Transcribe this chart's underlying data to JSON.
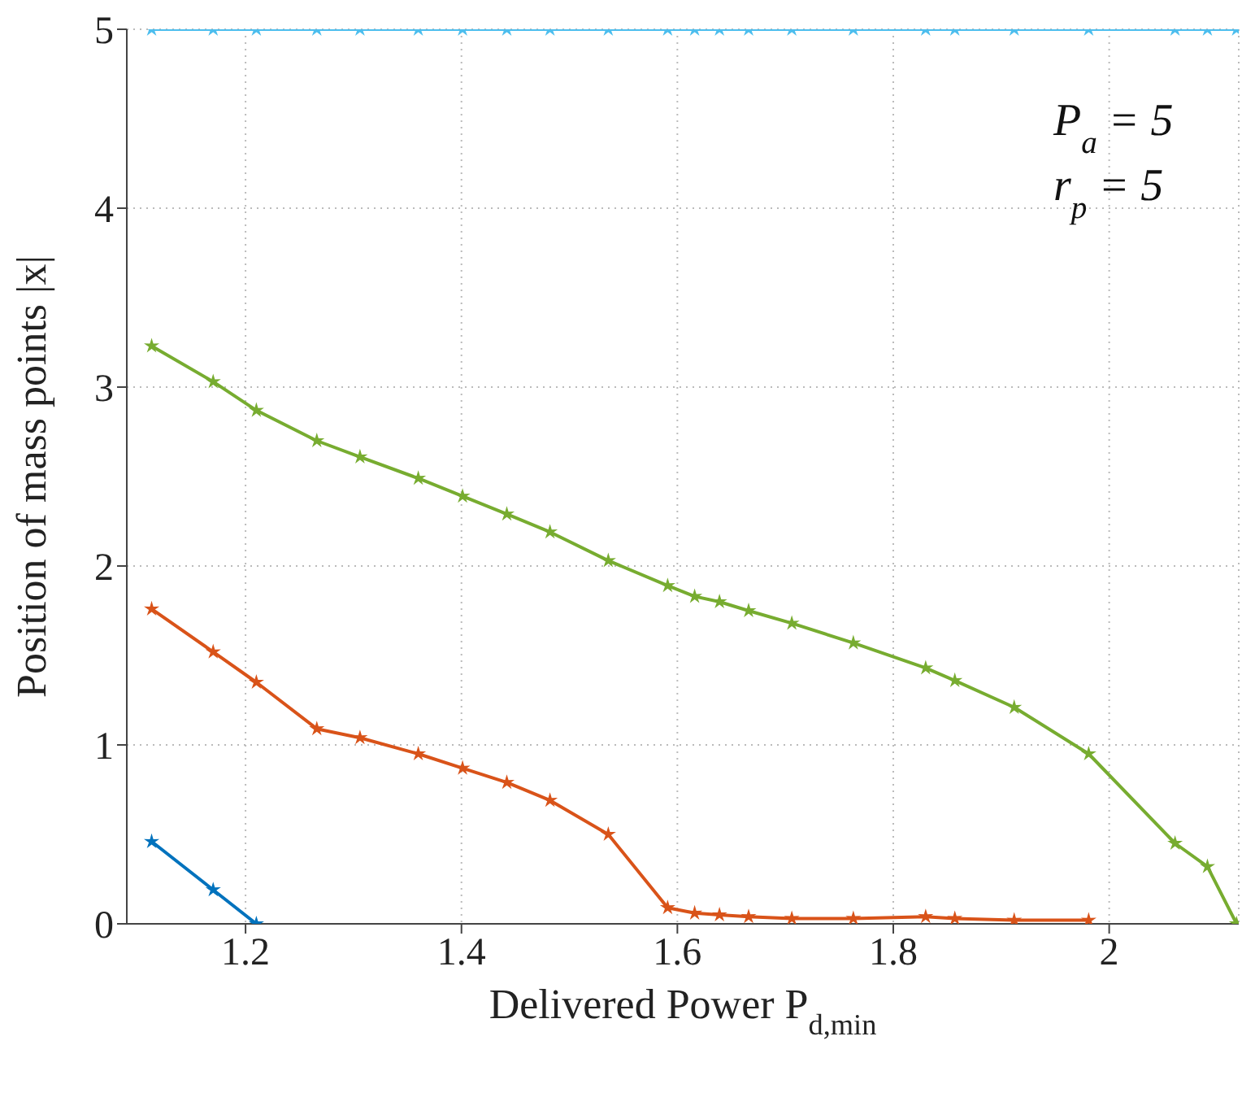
{
  "chart_data": {
    "type": "line",
    "xlabel": "Delivered Power P$_{d,min}$",
    "ylabel": "Position of mass points |x|",
    "x": [
      1.113,
      1.17,
      1.21,
      1.266,
      1.306,
      1.36,
      1.401,
      1.442,
      1.482,
      1.536,
      1.591,
      1.616,
      1.639,
      1.666,
      1.706,
      1.763,
      1.83,
      1.857,
      1.912,
      1.981,
      2.061,
      2.091,
      2.118
    ],
    "series": [
      {
        "color": "#0072bd",
        "x": [
          1.113,
          1.17,
          1.21
        ],
        "values": [
          0.46,
          0.19,
          0
        ]
      },
      {
        "color": "#d95319",
        "x": [
          1.113,
          1.17,
          1.21,
          1.266,
          1.306,
          1.36,
          1.401,
          1.442,
          1.482,
          1.536,
          1.591,
          1.616,
          1.639,
          1.666,
          1.706,
          1.763,
          1.83,
          1.857,
          1.912,
          1.981
        ],
        "values": [
          1.76,
          1.52,
          1.35,
          1.09,
          1.04,
          0.95,
          0.87,
          0.79,
          0.69,
          0.5,
          0.09,
          0.06,
          0.05,
          0.04,
          0.03,
          0.03,
          0.04,
          0.03,
          0.02,
          0.02
        ]
      },
      {
        "color": "#77ac30",
        "values": [
          3.23,
          3.03,
          2.87,
          2.7,
          2.61,
          2.49,
          2.39,
          2.29,
          2.19,
          2.03,
          1.89,
          1.83,
          1.8,
          1.75,
          1.68,
          1.57,
          1.43,
          1.36,
          1.21,
          0.95,
          0.45,
          0.32,
          0
        ]
      },
      {
        "color": "#4dbeee",
        "values": [
          5,
          5,
          5,
          5,
          5,
          5,
          5,
          5,
          5,
          5,
          5,
          5,
          5,
          5,
          5,
          5,
          5,
          5,
          5,
          5,
          5,
          5,
          5
        ]
      }
    ],
    "xlim": [
      1.09,
      2.12
    ],
    "xticks": [
      1.2,
      1.4,
      1.6,
      1.8,
      2
    ],
    "ylim": [
      0,
      5
    ],
    "yticks": [
      0,
      1,
      2,
      3,
      4,
      5
    ],
    "grid": true,
    "marker": "star",
    "line_style": "solid",
    "annotations": [
      "P$_{a}$ = 5",
      "r$_{p}$ = 5"
    ]
  }
}
